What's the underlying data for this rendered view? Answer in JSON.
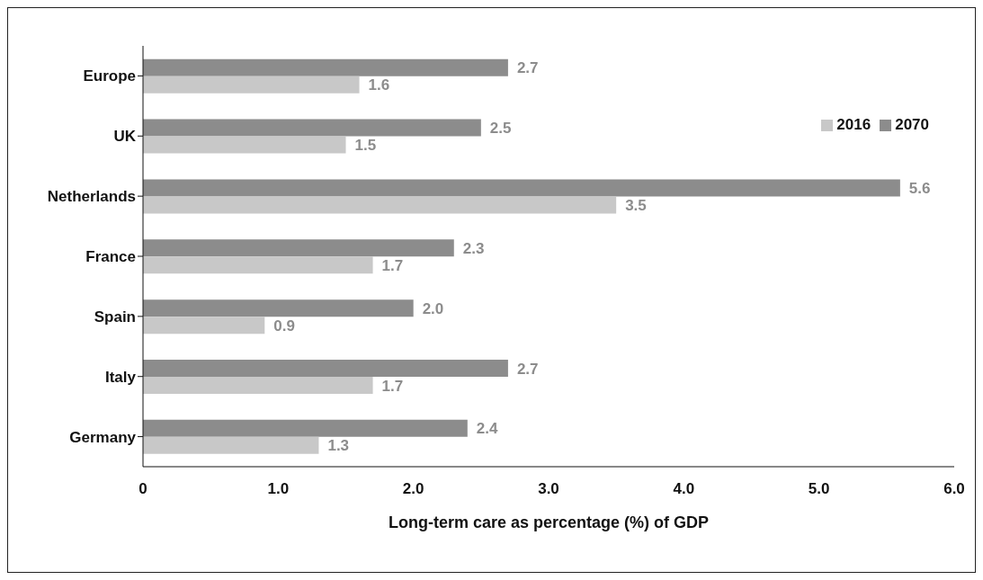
{
  "chart_data": {
    "type": "bar",
    "orientation": "horizontal",
    "xlabel": "Long-term care as percentage (%) of GDP",
    "categories": [
      "Europe",
      "UK",
      "Netherlands",
      "France",
      "Spain",
      "Italy",
      "Germany"
    ],
    "series": [
      {
        "name": "2070",
        "color": "#8c8c8c",
        "values": [
          2.7,
          2.5,
          5.6,
          2.3,
          2.0,
          2.7,
          2.4
        ],
        "value_labels": [
          "2.7",
          "2.5",
          "5.6",
          "2.3",
          "2.0",
          "2.7",
          "2.4"
        ]
      },
      {
        "name": "2016",
        "color": "#c8c8c8",
        "values": [
          1.6,
          1.5,
          3.5,
          1.7,
          0.9,
          1.7,
          1.3
        ],
        "value_labels": [
          "1.6",
          "1.5",
          "3.5",
          "1.7",
          "0.9",
          "1.7",
          "1.3"
        ]
      }
    ],
    "xlim": [
      0,
      6
    ],
    "xticks": [
      0,
      {
        "value": 1,
        "label": "1.0"
      },
      {
        "value": 2,
        "label": "2.0"
      },
      {
        "value": 3,
        "label": "3.0"
      },
      {
        "value": 4,
        "label": "4.0"
      },
      {
        "value": 5,
        "label": "5.0"
      },
      {
        "value": 6,
        "label": "6.0"
      }
    ],
    "grid": false,
    "legend": "top right"
  }
}
